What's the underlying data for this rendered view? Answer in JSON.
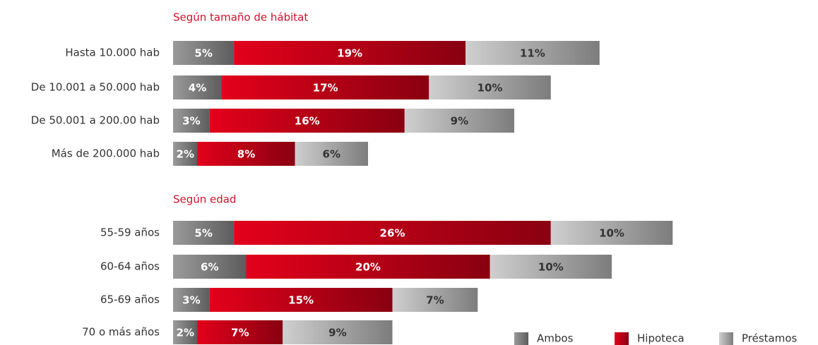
{
  "chart_data": {
    "type": "stacked-bar-horizontal",
    "series": [
      {
        "name": "Ambos",
        "color": "#9a9a9a"
      },
      {
        "name": "Hipoteca",
        "color": "#e3001b"
      },
      {
        "name": "Préstamos",
        "color": "#cfcfcf"
      }
    ],
    "panels": [
      {
        "title": "Según tamaño de hábitat",
        "categories": [
          "Hasta 10.000 hab",
          "De 10.001 a 50.000 hab",
          "De 50.001 a 200.00 hab",
          "Más de 200.000 hab"
        ],
        "values": [
          [
            5,
            4,
            3,
            2
          ],
          [
            19,
            17,
            16,
            8
          ],
          [
            11,
            10,
            9,
            6
          ]
        ],
        "value_labels": [
          [
            "5%",
            "4%",
            "3%",
            "2%"
          ],
          [
            "19%",
            "17%",
            "16%",
            "8%"
          ],
          [
            "11%",
            "10%",
            "9%",
            "6%"
          ]
        ]
      },
      {
        "title": "Según edad",
        "categories": [
          "55-59 años",
          "60-64 años",
          "65-69 años",
          "70 o más años"
        ],
        "values": [
          [
            5,
            6,
            3,
            2
          ],
          [
            26,
            20,
            15,
            7
          ],
          [
            10,
            10,
            7,
            9
          ]
        ],
        "value_labels": [
          [
            "5%",
            "6%",
            "3%",
            "2%"
          ],
          [
            "26%",
            "20%",
            "15%",
            "7%"
          ],
          [
            "10%",
            "10%",
            "7%",
            "9%"
          ]
        ]
      }
    ]
  }
}
